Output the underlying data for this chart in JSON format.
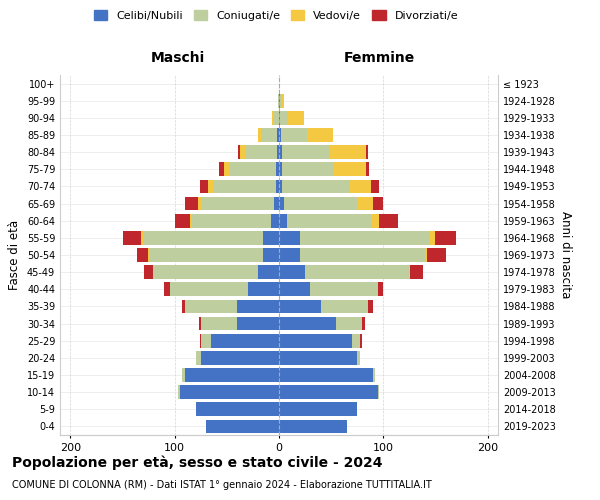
{
  "age_groups": [
    "0-4",
    "5-9",
    "10-14",
    "15-19",
    "20-24",
    "25-29",
    "30-34",
    "35-39",
    "40-44",
    "45-49",
    "50-54",
    "55-59",
    "60-64",
    "65-69",
    "70-74",
    "75-79",
    "80-84",
    "85-89",
    "90-94",
    "95-99",
    "100+"
  ],
  "birth_years": [
    "2019-2023",
    "2014-2018",
    "2009-2013",
    "2004-2008",
    "1999-2003",
    "1994-1998",
    "1989-1993",
    "1984-1988",
    "1979-1983",
    "1974-1978",
    "1969-1973",
    "1964-1968",
    "1959-1963",
    "1954-1958",
    "1949-1953",
    "1944-1948",
    "1939-1943",
    "1934-1938",
    "1929-1933",
    "1924-1928",
    "≤ 1923"
  ],
  "males": {
    "celibe": [
      70,
      80,
      95,
      90,
      75,
      65,
      40,
      40,
      30,
      20,
      15,
      15,
      8,
      5,
      3,
      3,
      2,
      2,
      0,
      0,
      0
    ],
    "coniugato": [
      0,
      0,
      2,
      3,
      5,
      10,
      35,
      50,
      75,
      100,
      110,
      115,
      75,
      70,
      60,
      45,
      30,
      15,
      5,
      1,
      0
    ],
    "vedovo": [
      0,
      0,
      0,
      0,
      0,
      0,
      0,
      0,
      0,
      1,
      1,
      2,
      2,
      3,
      5,
      5,
      5,
      3,
      2,
      0,
      0
    ],
    "divorziato": [
      0,
      0,
      0,
      0,
      0,
      1,
      2,
      3,
      5,
      8,
      10,
      18,
      15,
      12,
      8,
      5,
      2,
      0,
      0,
      0,
      0
    ]
  },
  "females": {
    "nubile": [
      65,
      75,
      95,
      90,
      75,
      70,
      55,
      40,
      30,
      25,
      20,
      20,
      8,
      5,
      3,
      3,
      3,
      2,
      1,
      1,
      0
    ],
    "coniugata": [
      0,
      0,
      1,
      2,
      3,
      8,
      25,
      45,
      65,
      100,
      120,
      125,
      80,
      70,
      65,
      50,
      45,
      25,
      8,
      2,
      0
    ],
    "vedova": [
      0,
      0,
      0,
      0,
      0,
      0,
      0,
      0,
      0,
      1,
      2,
      5,
      8,
      15,
      20,
      30,
      35,
      25,
      15,
      2,
      0
    ],
    "divorziata": [
      0,
      0,
      0,
      0,
      0,
      2,
      2,
      5,
      5,
      12,
      18,
      20,
      18,
      10,
      8,
      3,
      2,
      0,
      0,
      0,
      0
    ]
  },
  "colors": {
    "celibe_nubile": "#4472C4",
    "coniugato_a": "#BFCE9E",
    "vedovo_a": "#F5C842",
    "divorziato_a": "#C0272D"
  },
  "xlim": 210,
  "title": "Popolazione per età, sesso e stato civile - 2024",
  "subtitle": "COMUNE DI COLONNA (RM) - Dati ISTAT 1° gennaio 2024 - Elaborazione TUTTITALIA.IT",
  "ylabel_left": "Fasce di età",
  "ylabel_right": "Anni di nascita",
  "xlabel_left": "Maschi",
  "xlabel_right": "Femmine",
  "bg_color": "#ffffff",
  "grid_color": "#cccccc"
}
